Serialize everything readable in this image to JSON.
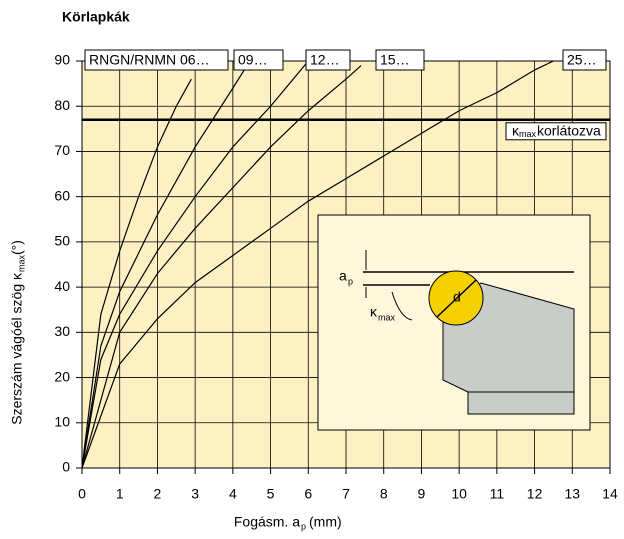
{
  "chart_data": {
    "type": "line",
    "title": "Körlapkák",
    "x_label": {
      "text": "Fogásm. a",
      "sub": "p",
      "unit": "(mm)"
    },
    "y_label": {
      "text": "Szerszám vágóél szög κ",
      "sub": "max",
      "unit": "(°)"
    },
    "xlim": [
      0,
      14
    ],
    "ylim": [
      0,
      90
    ],
    "xticks": [
      0,
      1,
      2,
      3,
      4,
      5,
      6,
      7,
      8,
      9,
      10,
      11,
      12,
      13,
      14
    ],
    "yticks": [
      0,
      10,
      20,
      30,
      40,
      50,
      60,
      70,
      80,
      90
    ],
    "grid": true,
    "series": [
      {
        "name": "RNGN/RNMN 06…",
        "color": "#000000",
        "x": [
          0,
          0.5,
          1,
          1.5,
          2,
          2.5,
          2.9
        ],
        "values": [
          0,
          34,
          48,
          60,
          71,
          80,
          86
        ]
      },
      {
        "name": "09…",
        "color": "#000000",
        "x": [
          0,
          0.5,
          1,
          2,
          3,
          4,
          4.3
        ],
        "values": [
          0,
          27,
          39,
          56,
          71,
          84,
          88
        ]
      },
      {
        "name": "12…",
        "color": "#000000",
        "x": [
          0,
          0.5,
          1,
          2,
          3,
          4,
          5,
          6
        ],
        "values": [
          0,
          24,
          34,
          48,
          60,
          71,
          80,
          90
        ]
      },
      {
        "name": "15…",
        "color": "#000000",
        "x": [
          0,
          1,
          2,
          3,
          4,
          5,
          6,
          7,
          7.4
        ],
        "values": [
          0,
          30,
          43,
          53,
          62,
          71,
          79,
          86,
          89
        ]
      },
      {
        "name": "25…",
        "color": "#000000",
        "x": [
          0,
          1,
          2,
          3,
          4,
          5,
          6,
          7,
          8,
          9,
          10,
          11,
          12,
          12.5
        ],
        "values": [
          0,
          23,
          33,
          41,
          47,
          53,
          59,
          64,
          69,
          74,
          79,
          83,
          88,
          90
        ]
      }
    ],
    "limit": {
      "value": 77,
      "symbol": "κ",
      "sub": "max",
      "text": "korlátozva"
    },
    "inset": {
      "ap": "a",
      "ap_sub": "p",
      "kappa": "κ",
      "kappa_sub": "max",
      "d": "d"
    }
  }
}
